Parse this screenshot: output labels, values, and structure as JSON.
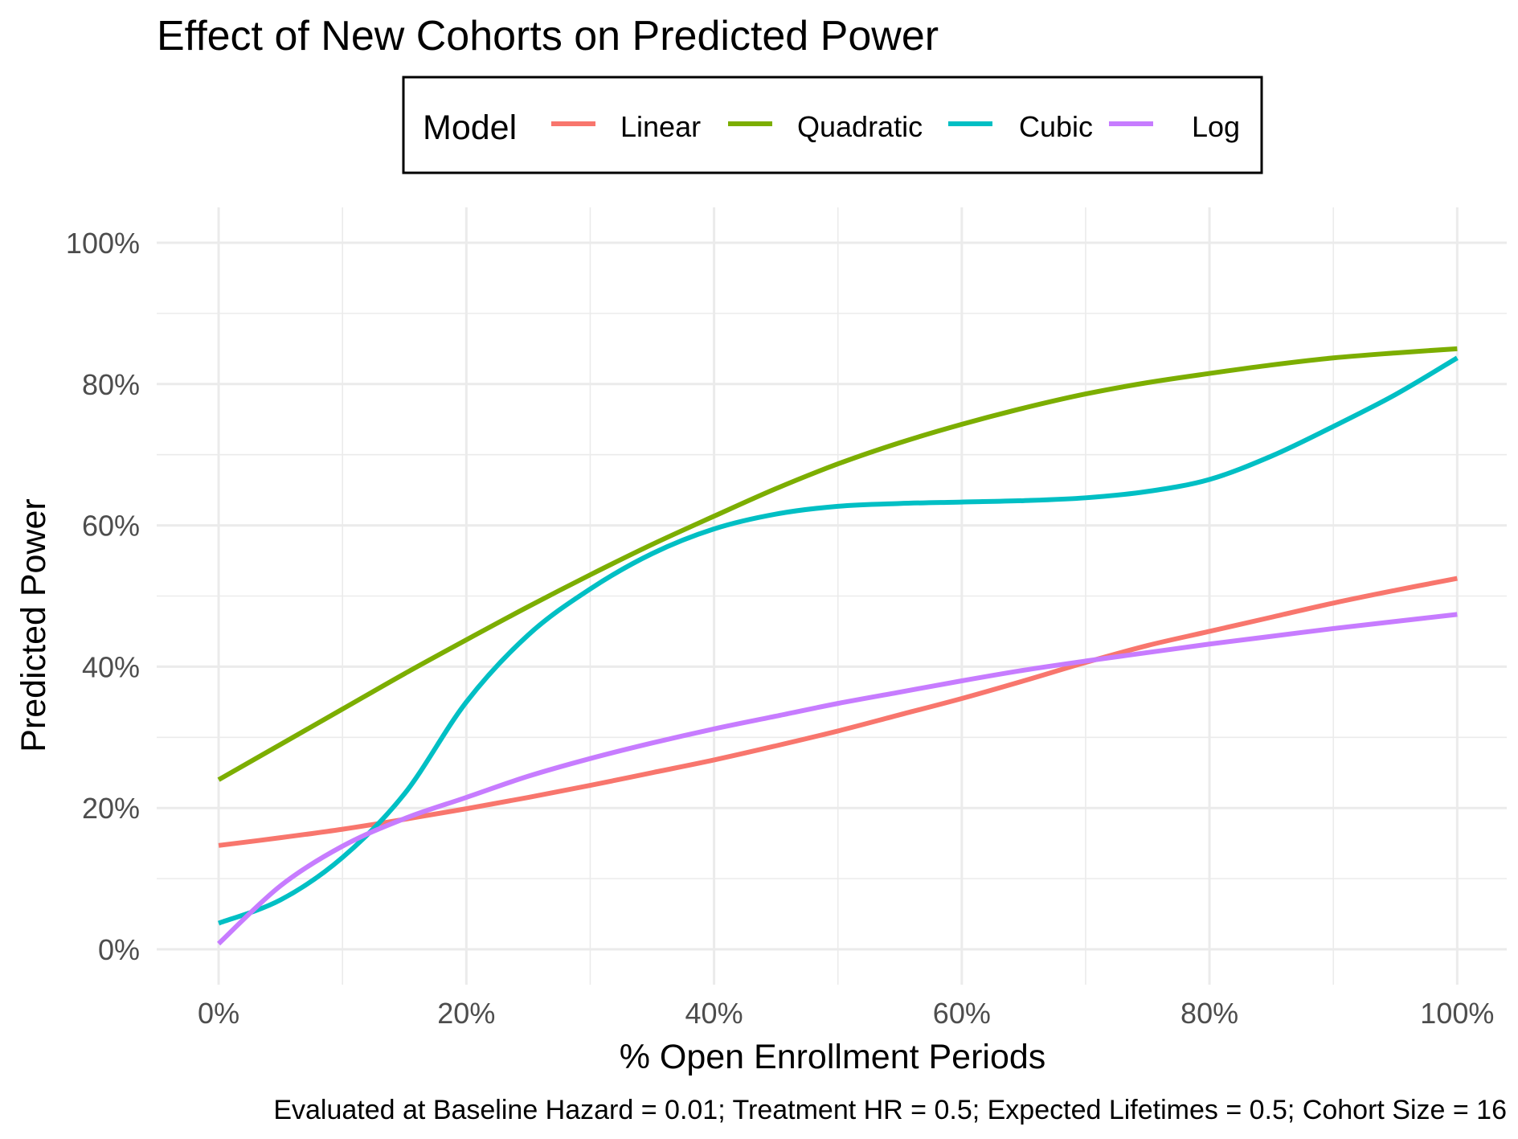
{
  "chart_data": {
    "type": "line",
    "title": "Effect of New Cohorts on Predicted Power",
    "xlabel": "% Open Enrollment Periods",
    "ylabel": "Predicted Power",
    "caption": "Evaluated at Baseline Hazard = 0.01; Treatment HR = 0.5; Expected Lifetimes = 0.5; Cohort Size = 16",
    "xlim": [
      -5,
      104
    ],
    "ylim": [
      -5,
      105
    ],
    "x_ticks": [
      0,
      20,
      40,
      60,
      80,
      100
    ],
    "x_tick_labels": [
      "0%",
      "20%",
      "40%",
      "60%",
      "80%",
      "100%"
    ],
    "y_ticks": [
      0,
      20,
      40,
      60,
      80,
      100
    ],
    "y_tick_labels": [
      "0%",
      "20%",
      "40%",
      "60%",
      "80%",
      "100%"
    ],
    "grid": true,
    "legend": {
      "title": "Model",
      "position": "top"
    },
    "x": [
      0,
      5,
      10,
      15,
      20,
      25,
      30,
      35,
      40,
      45,
      50,
      55,
      60,
      65,
      70,
      75,
      80,
      85,
      90,
      95,
      100
    ],
    "series": [
      {
        "name": "Linear",
        "color": "#F8766D",
        "values": [
          14.7,
          15.8,
          17.0,
          18.4,
          19.9,
          21.5,
          23.2,
          25.0,
          26.8,
          28.8,
          30.9,
          33.2,
          35.5,
          38.0,
          40.6,
          43.0,
          45.0,
          47.0,
          49.0,
          50.8,
          52.5
        ]
      },
      {
        "name": "Quadratic",
        "color": "#7CAE00",
        "values": [
          24.0,
          29.0,
          34.0,
          39.0,
          43.8,
          48.5,
          53.0,
          57.3,
          61.3,
          65.2,
          68.7,
          71.7,
          74.3,
          76.6,
          78.6,
          80.2,
          81.5,
          82.7,
          83.7,
          84.4,
          85.0
        ]
      },
      {
        "name": "Cubic",
        "color": "#00BFC4",
        "values": [
          3.7,
          7.0,
          13.0,
          22.0,
          35.0,
          44.5,
          51.0,
          56.0,
          59.5,
          61.6,
          62.7,
          63.1,
          63.3,
          63.5,
          63.9,
          64.8,
          66.5,
          69.8,
          74.0,
          78.5,
          83.7
        ]
      },
      {
        "name": "Log",
        "color": "#C77CFF",
        "values": [
          0.8,
          9.0,
          14.6,
          18.5,
          21.5,
          24.5,
          27.0,
          29.2,
          31.2,
          33.0,
          34.8,
          36.4,
          38.0,
          39.5,
          40.8,
          42.0,
          43.2,
          44.3,
          45.4,
          46.4,
          47.4
        ]
      }
    ]
  }
}
